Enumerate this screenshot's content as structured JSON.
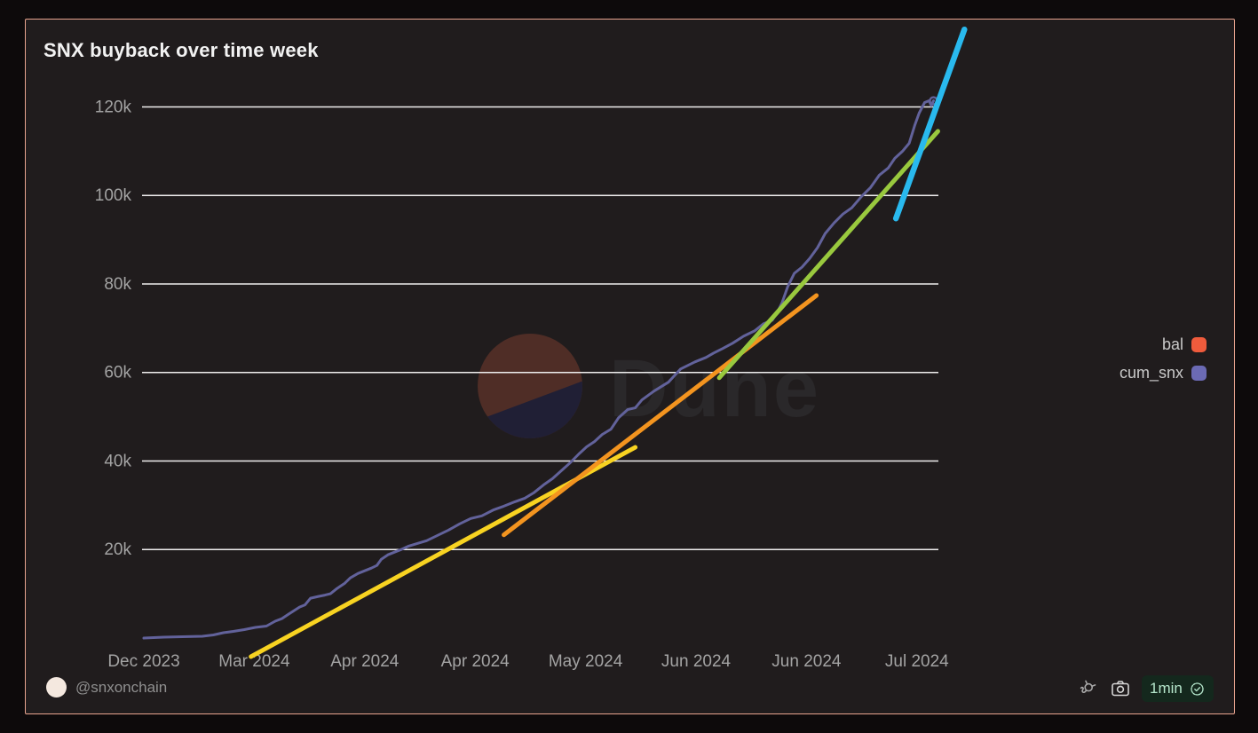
{
  "title": "SNX buyback over time week",
  "watermark": {
    "text": "Dune"
  },
  "legend": [
    {
      "label": "bal",
      "color": "#ef5b3c"
    },
    {
      "label": "cum_snx",
      "color": "#6b6ab4"
    }
  ],
  "footer": {
    "handle": "@snxonchain",
    "refresh_label": "1min",
    "icons": [
      "plug-icon",
      "camera-icon",
      "verified-check-icon"
    ]
  },
  "colors": {
    "border_accent": "#e9a48f",
    "panel_background": "#201c1d",
    "outer_background": "#0d0a0b",
    "grid": "#efeeee",
    "tick_text": "#a3a3a3",
    "title_text": "#f2f2f2",
    "watermark_text": "#2a282a",
    "watermark_circle_top": "#4f2d26",
    "watermark_circle_bottom": "#201f35",
    "badge_background": "#14281d",
    "badge_text": "#b5e6cb"
  },
  "chart_data": {
    "type": "line",
    "title": "SNX buyback over time week",
    "x_unit": "tick-index (0 = Dec 2023 tick)",
    "y_unit": "SNX",
    "ylim": [
      0,
      140000
    ],
    "grid": true,
    "legend_position": "right",
    "x_ticks": [
      "Dec 2023",
      "Mar 2024",
      "Apr 2024",
      "Apr 2024",
      "May 2024",
      "Jun 2024",
      "Jun 2024",
      "Jul 2024"
    ],
    "y_ticks": [
      {
        "label": "120k",
        "value": 120000
      },
      {
        "label": "100k",
        "value": 100000
      },
      {
        "label": "80k",
        "value": 80000
      },
      {
        "label": "60k",
        "value": 60000
      },
      {
        "label": "40k",
        "value": 40000
      },
      {
        "label": "20k",
        "value": 20000
      }
    ],
    "series": [
      {
        "name": "cum_snx",
        "color": "#62629b",
        "width": 3,
        "end_marker": true,
        "points": [
          [
            0.0,
            0
          ],
          [
            0.18,
            200
          ],
          [
            0.35,
            300
          ],
          [
            0.53,
            400
          ],
          [
            0.63,
            700
          ],
          [
            0.72,
            1200
          ],
          [
            0.81,
            1500
          ],
          [
            0.91,
            1900
          ],
          [
            1.01,
            2400
          ],
          [
            1.11,
            2700
          ],
          [
            1.19,
            3800
          ],
          [
            1.25,
            4400
          ],
          [
            1.31,
            5400
          ],
          [
            1.36,
            6200
          ],
          [
            1.41,
            7000
          ],
          [
            1.46,
            7500
          ],
          [
            1.51,
            9000
          ],
          [
            1.58,
            9400
          ],
          [
            1.64,
            9700
          ],
          [
            1.69,
            10000
          ],
          [
            1.75,
            11200
          ],
          [
            1.82,
            12400
          ],
          [
            1.87,
            13600
          ],
          [
            1.94,
            14600
          ],
          [
            2.0,
            15200
          ],
          [
            2.06,
            15800
          ],
          [
            2.11,
            16400
          ],
          [
            2.15,
            17800
          ],
          [
            2.21,
            18800
          ],
          [
            2.27,
            19400
          ],
          [
            2.33,
            20000
          ],
          [
            2.4,
            20800
          ],
          [
            2.48,
            21400
          ],
          [
            2.56,
            22000
          ],
          [
            2.66,
            23200
          ],
          [
            2.76,
            24400
          ],
          [
            2.86,
            25800
          ],
          [
            2.96,
            27000
          ],
          [
            3.06,
            27600
          ],
          [
            3.17,
            29000
          ],
          [
            3.26,
            29800
          ],
          [
            3.36,
            30800
          ],
          [
            3.45,
            31600
          ],
          [
            3.53,
            32800
          ],
          [
            3.62,
            34600
          ],
          [
            3.7,
            36000
          ],
          [
            3.78,
            37800
          ],
          [
            3.86,
            39600
          ],
          [
            3.94,
            41600
          ],
          [
            4.01,
            43200
          ],
          [
            4.08,
            44400
          ],
          [
            4.15,
            46000
          ],
          [
            4.23,
            47200
          ],
          [
            4.3,
            49800
          ],
          [
            4.38,
            51600
          ],
          [
            4.45,
            52000
          ],
          [
            4.51,
            53800
          ],
          [
            4.62,
            55800
          ],
          [
            4.75,
            57800
          ],
          [
            4.86,
            60800
          ],
          [
            4.99,
            62400
          ],
          [
            5.09,
            63400
          ],
          [
            5.16,
            64400
          ],
          [
            5.24,
            65400
          ],
          [
            5.33,
            66600
          ],
          [
            5.43,
            68200
          ],
          [
            5.53,
            69400
          ],
          [
            5.61,
            71000
          ],
          [
            5.69,
            71800
          ],
          [
            5.74,
            73800
          ],
          [
            5.78,
            75800
          ],
          [
            5.83,
            79400
          ],
          [
            5.89,
            82400
          ],
          [
            5.96,
            83800
          ],
          [
            6.03,
            85800
          ],
          [
            6.1,
            88200
          ],
          [
            6.17,
            91400
          ],
          [
            6.25,
            93800
          ],
          [
            6.33,
            95800
          ],
          [
            6.41,
            97200
          ],
          [
            6.5,
            99800
          ],
          [
            6.58,
            101800
          ],
          [
            6.66,
            104600
          ],
          [
            6.74,
            106200
          ],
          [
            6.8,
            108400
          ],
          [
            6.87,
            110000
          ],
          [
            6.93,
            111800
          ],
          [
            6.98,
            115800
          ],
          [
            7.02,
            118600
          ],
          [
            7.07,
            121000
          ],
          [
            7.11,
            121400
          ],
          [
            7.13,
            120300
          ],
          [
            7.15,
            121400
          ]
        ]
      }
    ],
    "trend_lines": [
      {
        "name": "yellow-trend",
        "color": "#f8d321",
        "width": 5,
        "from": [
          0.97,
          -4200
        ],
        "to": [
          4.45,
          43100
        ]
      },
      {
        "name": "orange-trend",
        "color": "#f3941f",
        "width": 5,
        "from": [
          3.26,
          23300
        ],
        "to": [
          6.09,
          77400
        ]
      },
      {
        "name": "green-trend",
        "color": "#99c93e",
        "width": 5,
        "from": [
          5.21,
          58800
        ],
        "to": [
          7.19,
          114500
        ]
      },
      {
        "name": "cyan-trend",
        "color": "#29b9ee",
        "width": 6.5,
        "from": [
          6.81,
          94800
        ],
        "to": [
          7.43,
          137500
        ]
      }
    ]
  }
}
